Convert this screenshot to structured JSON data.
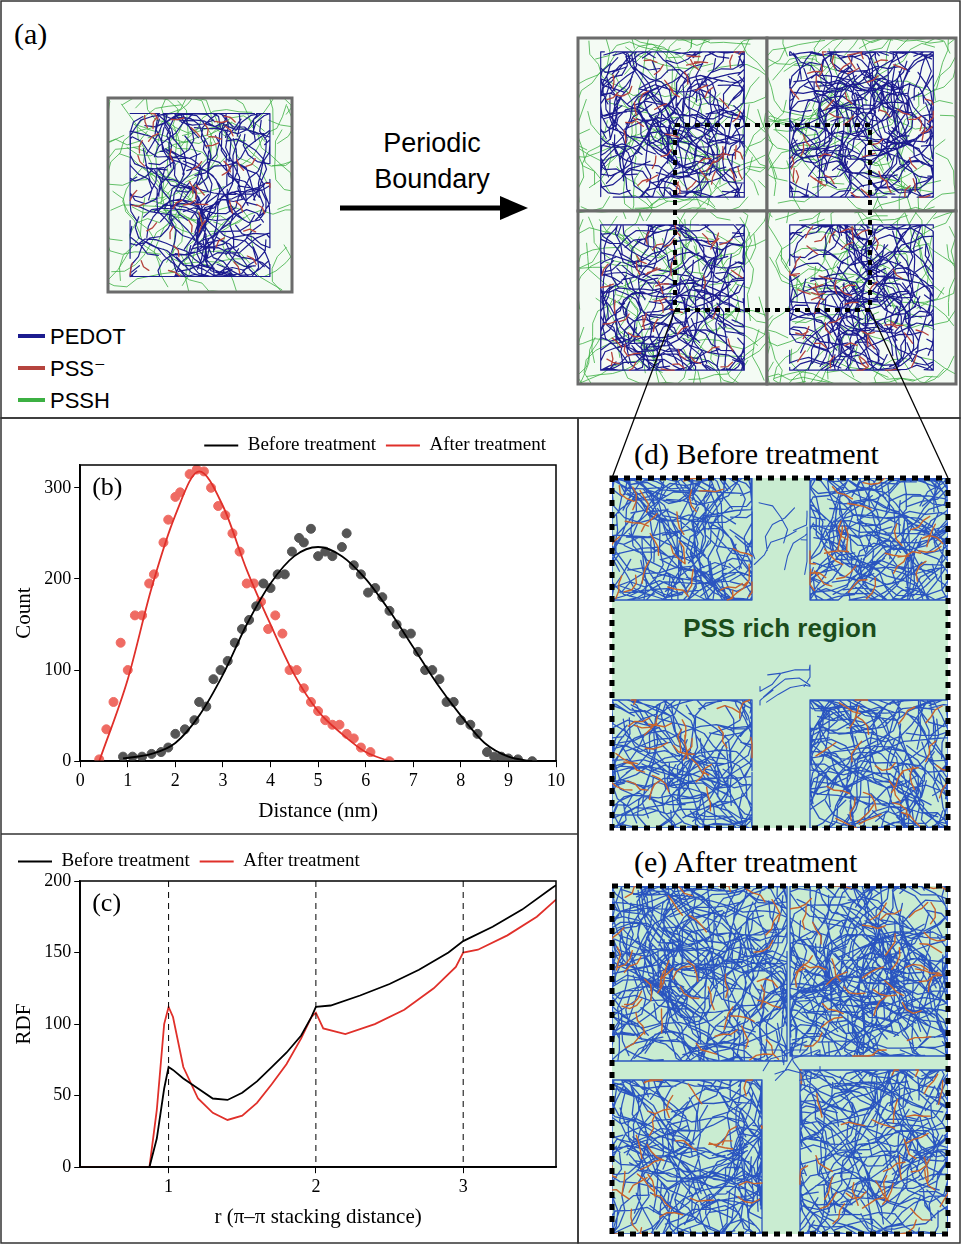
{
  "panel_a": {
    "label": "(a)",
    "arrow_text": "Periodic Boundary",
    "legend": [
      {
        "name": "PEDOT",
        "color": "#1c1c8f"
      },
      {
        "name": "PSS⁻",
        "color": "#b5443e"
      },
      {
        "name": "PSSH",
        "color": "#3cb043"
      }
    ]
  },
  "chart_data": [
    {
      "type": "scatter",
      "title": "(b)",
      "xlabel": "Distance (nm)",
      "ylabel": "Count",
      "xlim": [
        0,
        10
      ],
      "xticks": [
        0,
        1,
        2,
        3,
        4,
        5,
        6,
        7,
        8,
        9,
        10
      ],
      "ylim": [
        0,
        325
      ],
      "yticks": [
        0,
        100,
        200,
        300
      ],
      "grid": false,
      "legend": "top right",
      "series": [
        {
          "name": "Before treatment",
          "type": "line",
          "line_style": "solid",
          "color": "#000000",
          "x": [
            0.9,
            1.5,
            2,
            2.5,
            3,
            3.5,
            4,
            4.5,
            5,
            5.5,
            6,
            6.5,
            7,
            7.5,
            8,
            8.5,
            9,
            9.5
          ],
          "values": [
            3,
            8,
            20,
            50,
            95,
            150,
            195,
            225,
            235,
            225,
            200,
            165,
            125,
            85,
            50,
            20,
            5,
            0
          ]
        },
        {
          "type": "scatter",
          "marker": "circle",
          "color": "#555555",
          "x": [
            0.9,
            1.1,
            1.3,
            1.5,
            1.7,
            1.85,
            2.0,
            2.2,
            2.4,
            2.5,
            2.65,
            2.8,
            2.95,
            3.1,
            3.25,
            3.4,
            3.55,
            3.7,
            3.85,
            4.0,
            4.15,
            4.3,
            4.45,
            4.6,
            4.7,
            4.85,
            5.0,
            5.15,
            5.3,
            5.5,
            5.6,
            5.75,
            5.9,
            6.05,
            6.2,
            6.35,
            6.5,
            6.65,
            6.8,
            6.95,
            7.1,
            7.25,
            7.4,
            7.55,
            7.7,
            7.85,
            8.0,
            8.2,
            8.35,
            8.55,
            8.7,
            8.85,
            9.0,
            9.2,
            9.5
          ],
          "values": [
            5,
            5,
            5,
            8,
            10,
            15,
            30,
            35,
            45,
            65,
            60,
            90,
            100,
            110,
            130,
            145,
            155,
            170,
            195,
            190,
            205,
            205,
            230,
            245,
            240,
            255,
            225,
            230,
            225,
            235,
            250,
            215,
            205,
            185,
            190,
            180,
            165,
            150,
            140,
            140,
            120,
            100,
            100,
            90,
            65,
            65,
            45,
            40,
            30,
            10,
            5,
            5,
            3,
            2,
            0
          ]
        },
        {
          "name": "After treatment",
          "type": "line",
          "line_style": "solid",
          "color": "#e0302a",
          "x": [
            0.4,
            1,
            1.5,
            2,
            2.5,
            3,
            3.5,
            4,
            4.5,
            5,
            5.5,
            6,
            6.5
          ],
          "values": [
            0,
            90,
            190,
            270,
            318,
            280,
            210,
            150,
            95,
            55,
            30,
            10,
            0
          ]
        },
        {
          "type": "scatter",
          "marker": "circle",
          "color": "#ef6b63",
          "x": [
            0.4,
            0.55,
            0.7,
            0.85,
            1.0,
            1.15,
            1.3,
            1.45,
            1.55,
            1.75,
            1.85,
            2.0,
            2.1,
            2.3,
            2.45,
            2.6,
            2.75,
            2.9,
            3.05,
            3.2,
            3.35,
            3.5,
            3.65,
            3.8,
            3.95,
            4.1,
            4.25,
            4.4,
            4.55,
            4.7,
            4.85,
            5.0,
            5.15,
            5.3,
            5.45,
            5.6,
            5.75,
            5.9,
            6.1,
            6.5
          ],
          "values": [
            2,
            35,
            65,
            130,
            100,
            160,
            160,
            195,
            205,
            240,
            265,
            290,
            295,
            315,
            320,
            318,
            300,
            280,
            270,
            250,
            230,
            195,
            195,
            175,
            145,
            160,
            140,
            100,
            100,
            80,
            65,
            55,
            45,
            40,
            40,
            30,
            25,
            15,
            10,
            0
          ]
        }
      ]
    },
    {
      "type": "line",
      "title": "(c)",
      "xlabel": "r (π–π stacking distance)",
      "ylabel": "RDF",
      "xlim": [
        0.4,
        3.63
      ],
      "xticks": [
        1,
        2,
        3
      ],
      "ylim": [
        0,
        200
      ],
      "yticks": [
        0,
        50,
        100,
        150,
        200
      ],
      "vlines": [
        1,
        2,
        3
      ],
      "grid": false,
      "legend": "top left",
      "series": [
        {
          "name": "Before treatment",
          "line_style": "solid",
          "color": "#000000",
          "x": [
            0.4,
            0.87,
            0.92,
            0.97,
            1.0,
            1.03,
            1.1,
            1.2,
            1.3,
            1.4,
            1.5,
            1.6,
            1.7,
            1.8,
            1.9,
            1.97,
            2.0,
            2.1,
            2.3,
            2.5,
            2.7,
            2.9,
            3.0,
            3.2,
            3.4,
            3.6,
            3.63
          ],
          "values": [
            0,
            0,
            20,
            55,
            70,
            68,
            62,
            55,
            48,
            47,
            52,
            60,
            70,
            80,
            92,
            105,
            112,
            113,
            120,
            128,
            138,
            150,
            158,
            168,
            180,
            195,
            197
          ]
        },
        {
          "name": "After treatment",
          "line_style": "solid",
          "color": "#e0302a",
          "x": [
            0.4,
            0.87,
            0.92,
            0.97,
            1.0,
            1.03,
            1.1,
            1.2,
            1.3,
            1.4,
            1.5,
            1.6,
            1.7,
            1.8,
            1.9,
            1.97,
            2.0,
            2.05,
            2.2,
            2.4,
            2.6,
            2.8,
            2.95,
            3.0,
            3.1,
            3.3,
            3.5,
            3.63
          ],
          "values": [
            0,
            0,
            40,
            100,
            112,
            105,
            70,
            48,
            38,
            33,
            36,
            45,
            58,
            72,
            90,
            105,
            108,
            97,
            93,
            100,
            110,
            125,
            140,
            150,
            152,
            162,
            175,
            187
          ]
        }
      ]
    }
  ],
  "panel_d": {
    "label": "(d) Before treatment",
    "annotation": "PSS rich region"
  },
  "panel_e": {
    "label": "(e) After treatment"
  }
}
